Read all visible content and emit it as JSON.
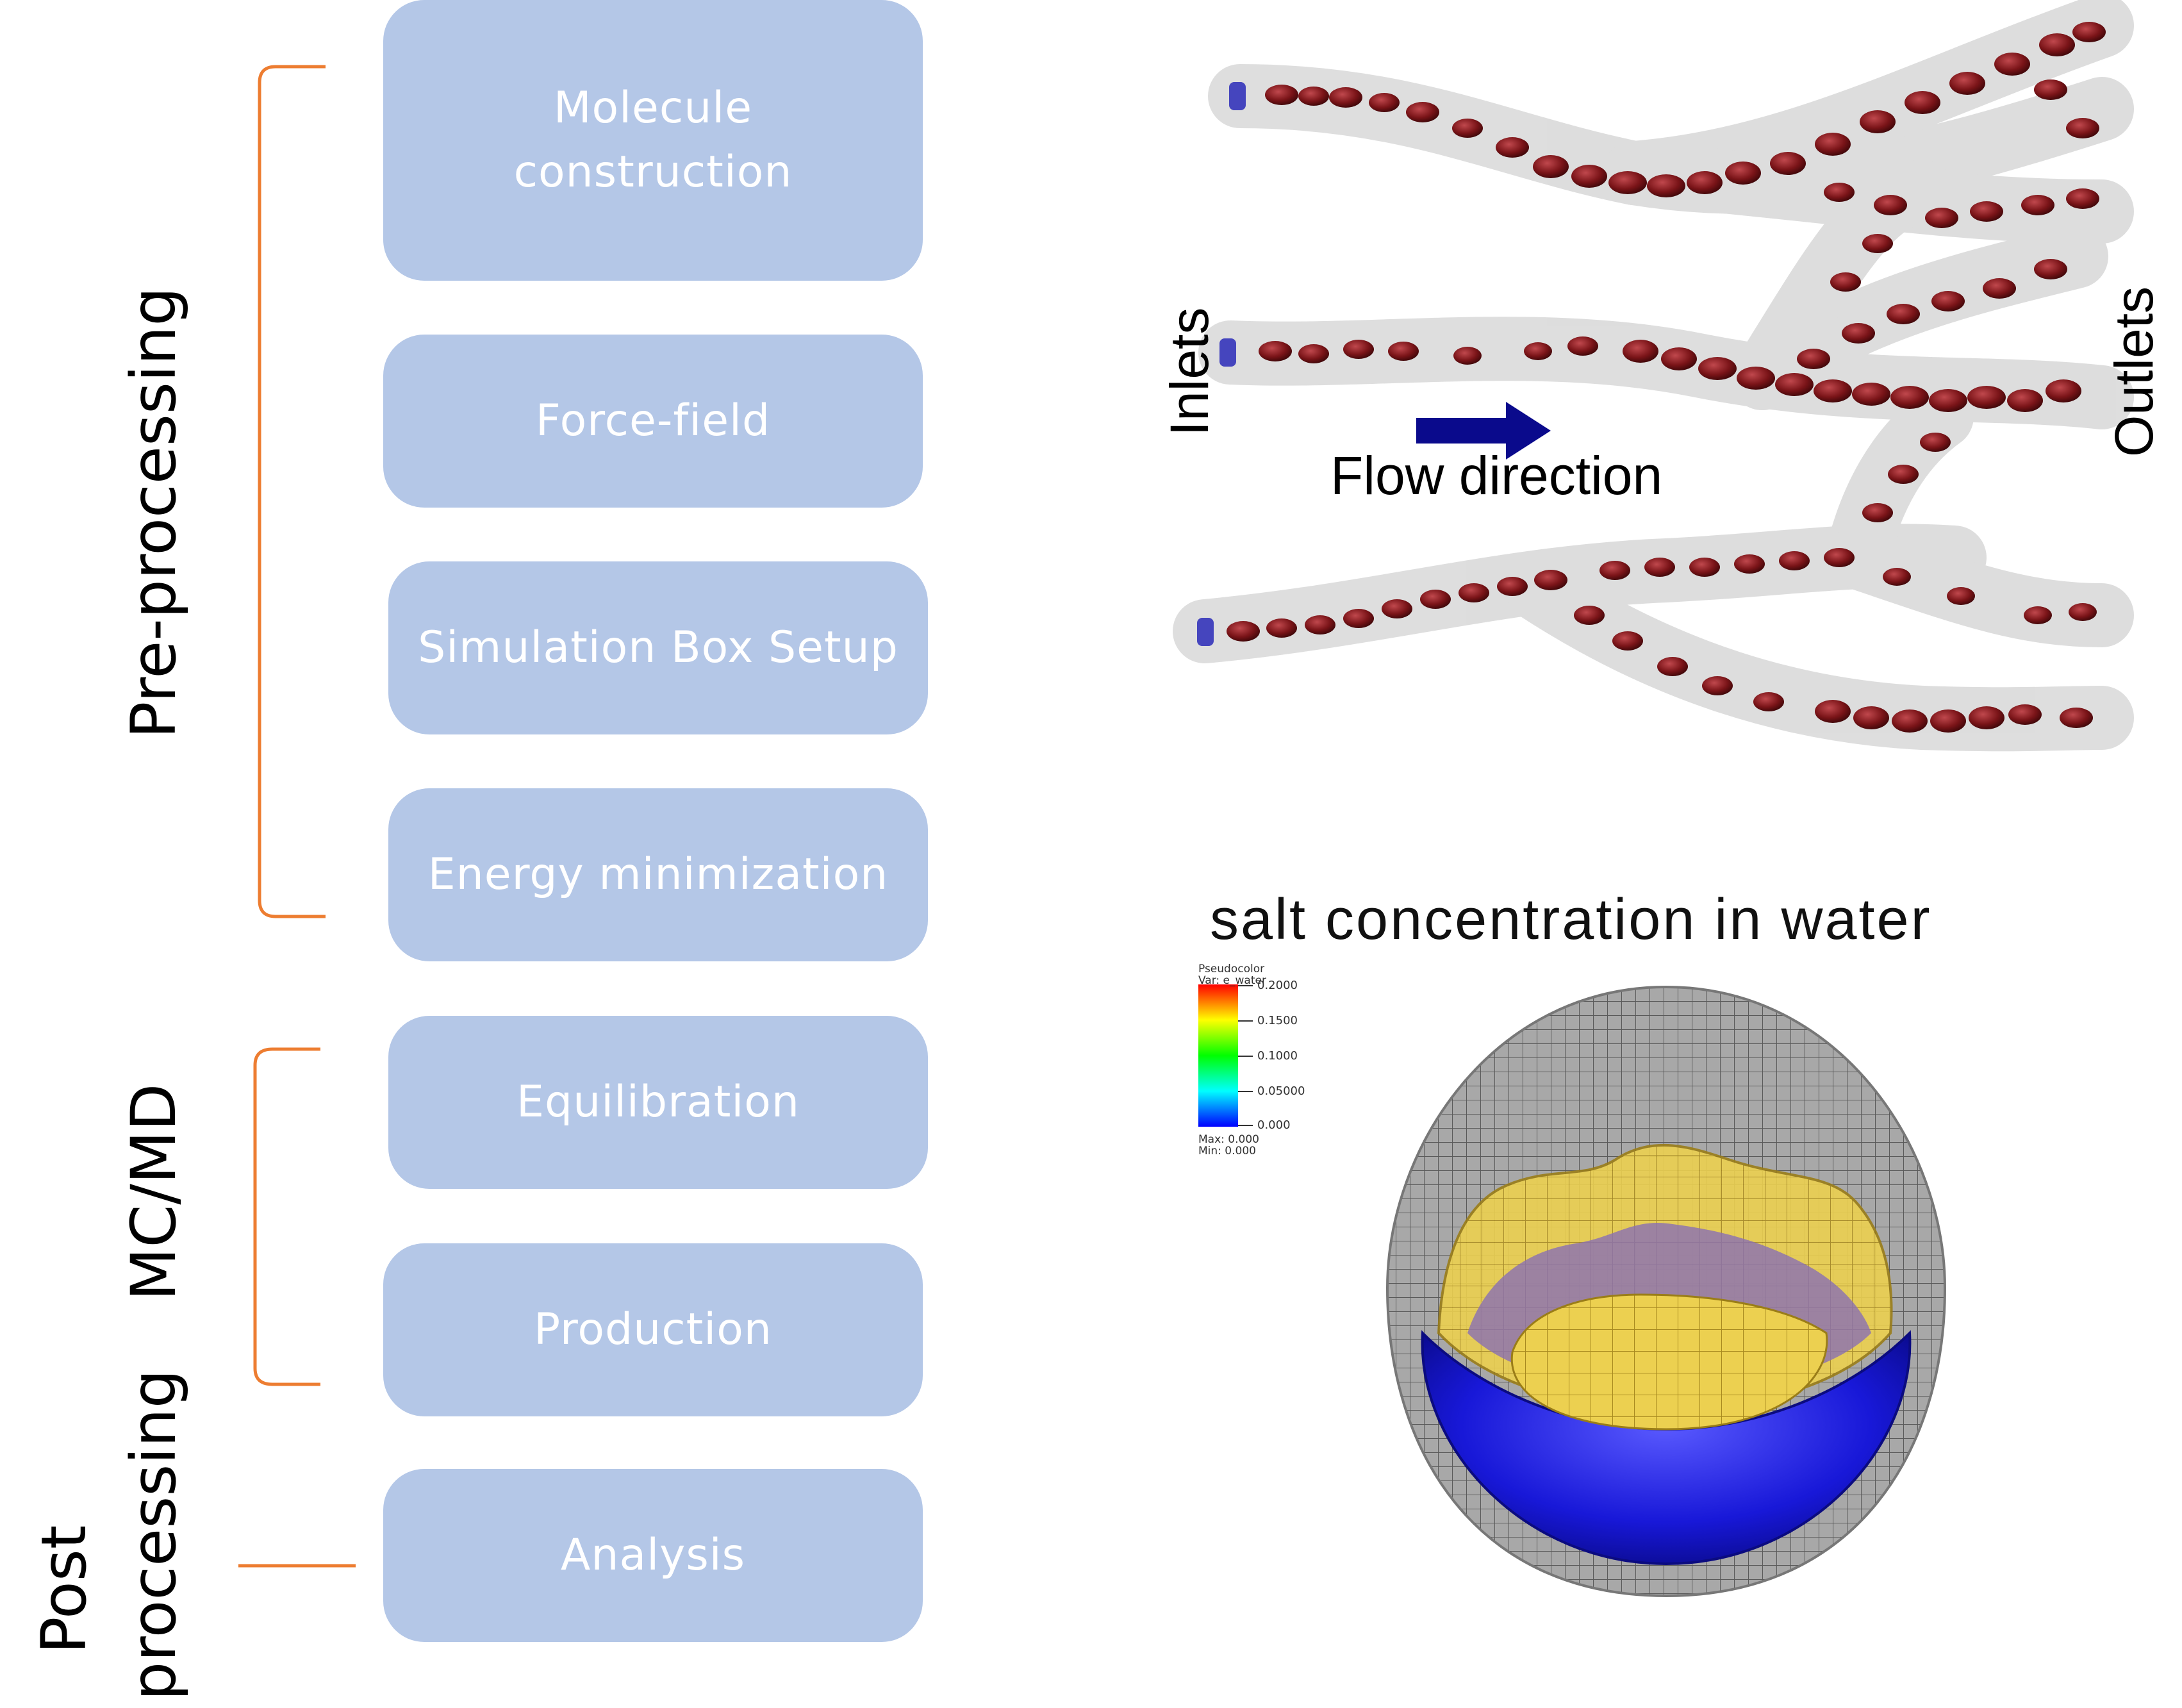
{
  "workflow": {
    "steps": [
      {
        "label": "Molecule\nconstruction"
      },
      {
        "label": "Force-field"
      },
      {
        "label": "Simulation Box Setup"
      },
      {
        "label": "Energy minimization"
      },
      {
        "label": "Equilibration"
      },
      {
        "label": "Production"
      },
      {
        "label": "Analysis"
      }
    ],
    "groups": {
      "pre": "Pre-processing",
      "md": "MC/MD",
      "post_line1": "Post",
      "post_line2": "processing"
    }
  },
  "flow_figure": {
    "inlets": "Inlets",
    "outlets": "Outlets",
    "flow_direction": "Flow direction"
  },
  "salt_figure": {
    "title": "salt concentration in water",
    "legend": {
      "heading": "Pseudocolor",
      "var": "Var: e_water",
      "ticks": [
        "0.2000",
        "0.1500",
        "0.1000",
        "0.05000",
        "0.000"
      ],
      "max": "Max: 0.000",
      "min": "Min: 0.000"
    }
  },
  "colors": {
    "box_fill": "#b4c7e7",
    "bracket": "#ed7d31",
    "arrow": "#0a0a8c",
    "rbc": "#7a1418",
    "yellow_layer": "#e8c63a",
    "blue_layer": "#1f1fd8",
    "mesh": "#8c8c8c"
  }
}
